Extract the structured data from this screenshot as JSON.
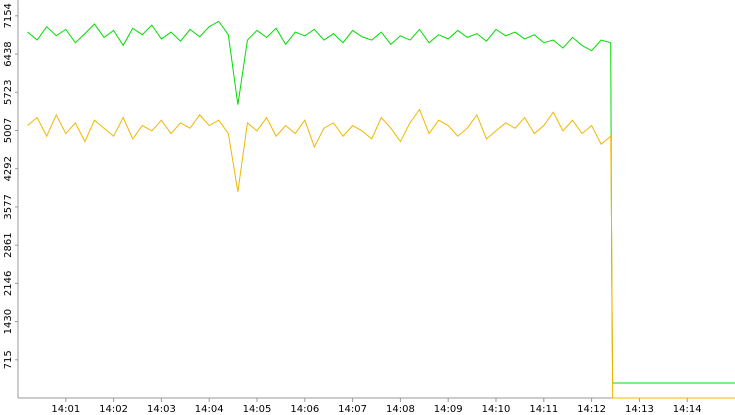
{
  "chart_data": {
    "type": "line",
    "x": [
      840.2,
      840.4,
      840.6,
      840.8,
      841,
      841.2,
      841.4,
      841.6,
      841.8,
      842,
      842.2,
      842.4,
      842.6,
      842.8,
      843,
      843.2,
      843.4,
      843.6,
      843.8,
      844,
      844.2,
      844.4,
      844.6,
      844.8,
      845,
      845.2,
      845.4,
      845.6,
      845.8,
      846,
      846.2,
      846.4,
      846.6,
      846.8,
      847,
      847.2,
      847.4,
      847.6,
      847.8,
      848,
      848.2,
      848.4,
      848.6,
      848.8,
      849,
      849.2,
      849.4,
      849.6,
      849.8,
      850,
      850.2,
      850.4,
      850.6,
      850.8,
      851,
      851.2,
      851.4,
      851.6,
      851.8,
      852,
      852.2,
      852.4,
      852.42,
      852.44,
      855
    ],
    "series": [
      {
        "color": "#00dd00",
        "values": [
          6850,
          6700,
          6950,
          6780,
          6900,
          6650,
          6820,
          7000,
          6750,
          6880,
          6600,
          6920,
          6800,
          6980,
          6720,
          6850,
          6680,
          6900,
          6760,
          6950,
          7050,
          6800,
          5490,
          6700,
          6880,
          6750,
          6920,
          6620,
          6850,
          6780,
          6900,
          6700,
          6820,
          6650,
          6880,
          6760,
          6700,
          6850,
          6620,
          6780,
          6700,
          6900,
          6650,
          6800,
          6720,
          6880,
          6750,
          6820,
          6680,
          6900,
          6780,
          6850,
          6720,
          6800,
          6650,
          6700,
          6550,
          6750,
          6600,
          6500,
          6700,
          6650,
          2400,
          280,
          280
        ]
      },
      {
        "color": "#f0b800",
        "values": [
          5100,
          5250,
          4900,
          5300,
          4950,
          5150,
          4800,
          5200,
          5050,
          4900,
          5250,
          4850,
          5100,
          5000,
          5200,
          4950,
          5150,
          5050,
          5300,
          5100,
          5200,
          4950,
          3860,
          5150,
          5000,
          5250,
          4900,
          5100,
          4950,
          5200,
          4700,
          5050,
          5150,
          4900,
          5100,
          5000,
          4850,
          5250,
          5050,
          4800,
          5150,
          5400,
          4950,
          5200,
          5100,
          4900,
          5050,
          5300,
          4850,
          5000,
          5150,
          5050,
          5250,
          4950,
          5100,
          5350,
          5000,
          5200,
          4950,
          5100,
          4750,
          4900,
          3000,
          0,
          0
        ]
      }
    ],
    "xlim": [
      840,
      855
    ],
    "ylim": [
      0,
      7450
    ],
    "xticks": [
      {
        "value": 841,
        "label": "14:01"
      },
      {
        "value": 842,
        "label": "14:02"
      },
      {
        "value": 843,
        "label": "14:03"
      },
      {
        "value": 844,
        "label": "14:04"
      },
      {
        "value": 845,
        "label": "14:05"
      },
      {
        "value": 846,
        "label": "14:06"
      },
      {
        "value": 847,
        "label": "14:07"
      },
      {
        "value": 848,
        "label": "14:08"
      },
      {
        "value": 849,
        "label": "14:09"
      },
      {
        "value": 850,
        "label": "14:10"
      },
      {
        "value": 851,
        "label": "14:11"
      },
      {
        "value": 852,
        "label": "14:12"
      },
      {
        "value": 853,
        "label": "14:13"
      },
      {
        "value": 854,
        "label": "14:14"
      }
    ],
    "yticks": [
      715,
      1430,
      2146,
      2861,
      3577,
      4292,
      5007,
      5723,
      6438,
      7154
    ]
  }
}
